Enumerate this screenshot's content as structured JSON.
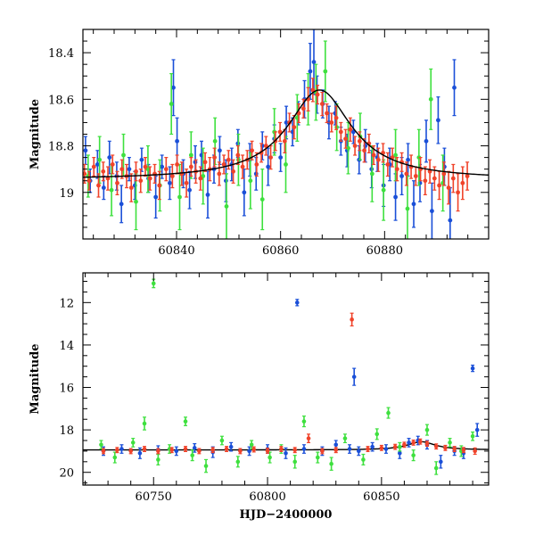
{
  "chart_data": [
    {
      "type": "scatter",
      "title": "",
      "xlabel": "",
      "ylabel": "Magnitude",
      "xlim": [
        60822,
        60900
      ],
      "ylim": [
        18.3,
        19.2
      ],
      "y_inverted": true,
      "grid": false,
      "legend": "none",
      "xticks": [
        60840,
        60860,
        60880
      ],
      "yticks": [
        18.4,
        18.6,
        18.8,
        19
      ],
      "ytick_labels": [
        "18.4",
        "18.6",
        "18.8",
        "19"
      ],
      "model_curve": {
        "color": "#000000",
        "baseline": 18.945,
        "peak_x": 60867.5,
        "peak_y": 18.56,
        "width_days": 7.5
      },
      "series": [
        {
          "color": "#1a4fd8",
          "x": [
            60822.5,
            60823.4,
            60824.8,
            60826.0,
            60827.1,
            60828.5,
            60829.4,
            60830.9,
            60832.0,
            60833.3,
            60834.6,
            60836.0,
            60837.2,
            60838.7,
            60839.4,
            60840.1,
            60841.3,
            60842.5,
            60843.6,
            60844.8,
            60846.0,
            60847.2,
            60848.3,
            60849.5,
            60850.6,
            60851.8,
            60853.0,
            60854.1,
            60855.3,
            60856.5,
            60857.6,
            60858.8,
            60860.0,
            60861.1,
            60862.3,
            60863.4,
            60864.6,
            60865.7,
            60866.4,
            60867.0,
            60868.1,
            60869.3,
            60870.5,
            60871.6,
            60872.8,
            60874.0,
            60875.1,
            60876.3,
            60877.5,
            60878.6,
            60879.8,
            60881.0,
            60882.1,
            60883.3,
            60884.5,
            60885.6,
            60886.8,
            60888.0,
            60889.1,
            60890.3,
            60891.5,
            60892.6,
            60893.4
          ],
          "y": [
            18.82,
            18.95,
            18.88,
            18.98,
            18.85,
            18.93,
            19.05,
            18.9,
            18.97,
            18.86,
            18.94,
            19.02,
            18.89,
            18.96,
            18.55,
            18.78,
            18.92,
            18.99,
            18.87,
            18.84,
            19.01,
            18.9,
            18.82,
            18.95,
            18.88,
            18.79,
            19.0,
            18.86,
            18.92,
            18.8,
            18.89,
            18.77,
            18.85,
            18.7,
            18.74,
            18.66,
            18.6,
            18.48,
            18.44,
            18.58,
            18.62,
            18.7,
            18.66,
            18.78,
            18.82,
            18.74,
            18.86,
            18.8,
            18.9,
            18.85,
            18.97,
            18.88,
            19.02,
            18.93,
            18.86,
            19.05,
            18.96,
            18.78,
            19.08,
            18.69,
            18.89,
            19.12,
            18.55
          ],
          "yerr": [
            0.06,
            0.05,
            0.06,
            0.05,
            0.07,
            0.06,
            0.08,
            0.05,
            0.06,
            0.05,
            0.06,
            0.09,
            0.05,
            0.07,
            0.12,
            0.1,
            0.06,
            0.08,
            0.07,
            0.06,
            0.1,
            0.06,
            0.06,
            0.09,
            0.07,
            0.06,
            0.1,
            0.07,
            0.07,
            0.06,
            0.08,
            0.06,
            0.06,
            0.07,
            0.06,
            0.05,
            0.08,
            0.12,
            0.14,
            0.08,
            0.06,
            0.07,
            0.05,
            0.06,
            0.07,
            0.05,
            0.06,
            0.07,
            0.08,
            0.06,
            0.09,
            0.07,
            0.1,
            0.08,
            0.07,
            0.1,
            0.08,
            0.09,
            0.12,
            0.1,
            0.08,
            0.14,
            0.12
          ]
        },
        {
          "color": "#3ee03e",
          "x": [
            60823.0,
            60825.2,
            60827.5,
            60829.8,
            60832.2,
            60834.5,
            60836.8,
            60839.0,
            60840.6,
            60842.8,
            60845.1,
            60847.4,
            60849.6,
            60851.9,
            60854.2,
            60856.5,
            60858.8,
            60861.0,
            60863.2,
            60865.3,
            60866.8,
            60868.6,
            60870.8,
            60873.0,
            60875.3,
            60877.6,
            60879.8,
            60882.1,
            60884.4,
            60886.6,
            60888.9,
            60891.2
          ],
          "y": [
            18.93,
            18.86,
            18.99,
            18.84,
            19.04,
            18.9,
            18.97,
            18.62,
            19.02,
            18.84,
            18.93,
            18.78,
            19.06,
            18.86,
            18.95,
            19.03,
            18.74,
            18.88,
            18.68,
            18.6,
            18.57,
            18.48,
            18.72,
            18.81,
            18.76,
            18.92,
            18.99,
            18.84,
            19.07,
            18.85,
            18.6,
            18.96
          ],
          "yerr": [
            0.09,
            0.1,
            0.11,
            0.09,
            0.12,
            0.1,
            0.11,
            0.13,
            0.14,
            0.1,
            0.12,
            0.1,
            0.14,
            0.11,
            0.12,
            0.13,
            0.1,
            0.12,
            0.1,
            0.11,
            0.12,
            0.13,
            0.1,
            0.11,
            0.1,
            0.12,
            0.13,
            0.11,
            0.14,
            0.12,
            0.13,
            0.12
          ]
        },
        {
          "color": "#f0432a",
          "x": [
            60822.3,
            60823.2,
            60824.1,
            60825.0,
            60825.9,
            60826.8,
            60827.7,
            60828.6,
            60829.5,
            60830.4,
            60831.3,
            60832.2,
            60833.1,
            60834.0,
            60834.9,
            60835.8,
            60836.7,
            60838.0,
            60839.2,
            60840.1,
            60841.0,
            60841.9,
            60842.8,
            60843.7,
            60844.6,
            60845.5,
            60846.4,
            60847.3,
            60848.2,
            60849.1,
            60850.0,
            60850.9,
            60851.8,
            60852.7,
            60853.6,
            60854.5,
            60855.4,
            60856.3,
            60857.2,
            60858.1,
            60859.0,
            60859.9,
            60860.8,
            60861.7,
            60862.6,
            60863.5,
            60864.4,
            60865.3,
            60866.2,
            60867.1,
            60868.0,
            60868.9,
            60869.8,
            60870.7,
            60871.6,
            60872.5,
            60873.4,
            60874.3,
            60875.2,
            60876.1,
            60877.0,
            60877.9,
            60878.8,
            60879.7,
            60880.6,
            60881.5,
            60882.4,
            60883.3,
            60884.2,
            60885.1,
            60886.0,
            60886.9,
            60887.8,
            60888.7,
            60889.6,
            60890.5,
            60891.4,
            60892.3,
            60893.2,
            60894.1,
            60895.0,
            60895.9
          ],
          "y": [
            18.92,
            18.95,
            18.89,
            18.97,
            18.91,
            18.94,
            18.88,
            18.96,
            18.9,
            18.93,
            18.98,
            18.91,
            18.95,
            18.89,
            18.94,
            18.92,
            18.97,
            18.9,
            18.93,
            18.88,
            18.92,
            18.96,
            18.89,
            18.91,
            18.94,
            18.87,
            18.9,
            18.85,
            18.92,
            18.88,
            18.86,
            18.91,
            18.84,
            18.89,
            18.86,
            18.82,
            18.88,
            18.83,
            18.8,
            18.85,
            18.78,
            18.74,
            18.78,
            18.7,
            18.72,
            18.66,
            18.64,
            18.6,
            18.56,
            18.58,
            18.62,
            18.66,
            18.7,
            18.68,
            18.74,
            18.77,
            18.73,
            18.8,
            18.78,
            18.82,
            18.79,
            18.84,
            18.86,
            18.83,
            18.88,
            18.85,
            18.9,
            18.87,
            18.92,
            18.89,
            18.93,
            18.9,
            18.95,
            18.91,
            18.94,
            18.97,
            18.92,
            18.98,
            18.94,
            19.0,
            18.96,
            18.93
          ],
          "yerr": [
            0.04,
            0.04,
            0.04,
            0.05,
            0.04,
            0.05,
            0.04,
            0.05,
            0.04,
            0.05,
            0.06,
            0.04,
            0.05,
            0.04,
            0.05,
            0.04,
            0.06,
            0.05,
            0.05,
            0.04,
            0.05,
            0.06,
            0.04,
            0.05,
            0.05,
            0.04,
            0.05,
            0.04,
            0.05,
            0.04,
            0.04,
            0.05,
            0.04,
            0.05,
            0.04,
            0.04,
            0.05,
            0.04,
            0.04,
            0.05,
            0.04,
            0.04,
            0.05,
            0.04,
            0.05,
            0.04,
            0.04,
            0.05,
            0.05,
            0.04,
            0.05,
            0.04,
            0.04,
            0.05,
            0.04,
            0.04,
            0.05,
            0.04,
            0.04,
            0.05,
            0.04,
            0.04,
            0.05,
            0.04,
            0.05,
            0.04,
            0.05,
            0.04,
            0.05,
            0.05,
            0.04,
            0.05,
            0.06,
            0.05,
            0.05,
            0.06,
            0.05,
            0.07,
            0.06,
            0.08,
            0.07,
            0.06
          ]
        }
      ]
    },
    {
      "type": "scatter",
      "title": "",
      "xlabel": "HJD−2400000",
      "ylabel": "Magnitude",
      "xlim": [
        60719,
        60897
      ],
      "ylim": [
        10.6,
        20.6
      ],
      "y_inverted": true,
      "grid": false,
      "legend": "none",
      "xticks": [
        60750,
        60800,
        60850
      ],
      "yticks": [
        12,
        14,
        16,
        18,
        20
      ],
      "model_curve": {
        "color": "#000000",
        "baseline": 18.945,
        "peak_x": 60867.5,
        "peak_y": 18.56,
        "width_days": 7.5
      },
      "series": [
        {
          "color": "#1a4fd8",
          "x": [
            60728,
            60736,
            60744,
            60752,
            60760,
            60768,
            60776,
            60784,
            60792,
            60800,
            60808,
            60813,
            60816,
            60824,
            60830,
            60836,
            60838,
            60840,
            60846,
            60852,
            60858,
            60862,
            60866,
            60870,
            60876,
            60882,
            60886,
            60890,
            60892
          ],
          "y": [
            19.0,
            18.9,
            19.1,
            18.95,
            19.0,
            18.85,
            19.05,
            18.8,
            19.0,
            18.9,
            19.1,
            12.0,
            18.9,
            19.0,
            18.7,
            18.9,
            15.5,
            19.0,
            18.8,
            18.9,
            19.1,
            18.6,
            18.5,
            18.7,
            19.5,
            19.0,
            19.1,
            15.1,
            18.0
          ],
          "yerr": [
            0.2,
            0.2,
            0.25,
            0.2,
            0.2,
            0.2,
            0.25,
            0.2,
            0.2,
            0.2,
            0.25,
            0.15,
            0.2,
            0.2,
            0.2,
            0.2,
            0.4,
            0.2,
            0.2,
            0.2,
            0.25,
            0.2,
            0.2,
            0.2,
            0.3,
            0.2,
            0.25,
            0.15,
            0.3
          ]
        },
        {
          "color": "#3ee03e",
          "x": [
            60727,
            60733,
            60741,
            60746,
            60750,
            60752,
            60757,
            60764,
            60767,
            60773,
            60780,
            60787,
            60793,
            60801,
            60806,
            60812,
            60816,
            60822,
            60828,
            60834,
            60842,
            60848,
            60853,
            60858,
            60864,
            60870,
            60874,
            60880,
            60885,
            60890
          ],
          "y": [
            18.7,
            19.3,
            18.6,
            17.7,
            11.1,
            19.4,
            18.9,
            17.6,
            19.2,
            19.7,
            18.5,
            19.5,
            18.7,
            19.3,
            18.9,
            19.5,
            17.6,
            19.3,
            19.6,
            18.4,
            19.4,
            18.2,
            17.2,
            18.8,
            19.2,
            18.0,
            19.8,
            18.6,
            19.0,
            18.3
          ],
          "yerr": [
            0.2,
            0.25,
            0.2,
            0.3,
            0.2,
            0.25,
            0.2,
            0.2,
            0.25,
            0.3,
            0.2,
            0.25,
            0.2,
            0.25,
            0.2,
            0.3,
            0.25,
            0.25,
            0.3,
            0.2,
            0.25,
            0.25,
            0.25,
            0.2,
            0.25,
            0.25,
            0.3,
            0.2,
            0.25,
            0.2
          ]
        },
        {
          "color": "#f0432a",
          "x": [
            60728,
            60734,
            60740,
            60746,
            60752,
            60758,
            60764,
            60770,
            60776,
            60782,
            60788,
            60794,
            60800,
            60806,
            60812,
            60818,
            60824,
            60830,
            60837,
            60844,
            60850,
            60856,
            60860,
            60864,
            60867,
            60870,
            60874,
            60878,
            60882,
            60886,
            60891
          ],
          "y": [
            19.0,
            18.95,
            19.0,
            18.9,
            19.0,
            18.95,
            18.9,
            19.0,
            18.95,
            18.9,
            19.0,
            18.92,
            18.98,
            18.9,
            18.95,
            18.4,
            19.0,
            18.95,
            12.8,
            18.9,
            18.85,
            18.8,
            18.7,
            18.6,
            18.55,
            18.65,
            18.78,
            18.85,
            18.9,
            18.95,
            19.0
          ],
          "yerr": [
            0.12,
            0.12,
            0.12,
            0.12,
            0.12,
            0.12,
            0.12,
            0.12,
            0.12,
            0.12,
            0.12,
            0.12,
            0.12,
            0.12,
            0.12,
            0.2,
            0.12,
            0.12,
            0.3,
            0.12,
            0.12,
            0.12,
            0.12,
            0.12,
            0.12,
            0.12,
            0.12,
            0.12,
            0.12,
            0.12,
            0.15
          ]
        }
      ]
    }
  ]
}
